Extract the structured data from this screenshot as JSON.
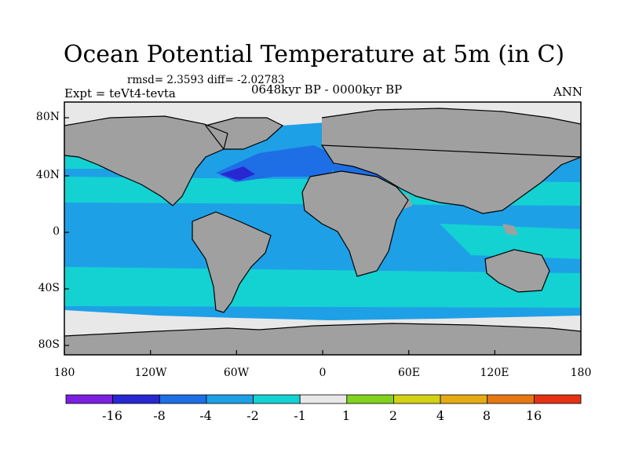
{
  "title": "Ocean Potential Temperature at 5m (in C)",
  "stats": "rmsd= 2.3593 diff= -2.02783",
  "experiment": "Expt = teVt4-tevta",
  "period": "0648kyr BP - 0000kyr BP",
  "season": "ANN",
  "axes": {
    "x_ticks": [
      "180",
      "120W",
      "60W",
      "0",
      "60E",
      "120E",
      "180"
    ],
    "y_ticks": [
      "80N",
      "40N",
      "0",
      "40S",
      "80S"
    ]
  },
  "colorbar": {
    "labels": [
      "-16",
      "-8",
      "-4",
      "-2",
      "-1",
      "1",
      "2",
      "4",
      "8",
      "16"
    ],
    "colors": [
      "#7b1fe0",
      "#2828d2",
      "#1e6ee6",
      "#1ea0e6",
      "#14d2d2",
      "#e8e8e8",
      "#82d21e",
      "#d2d214",
      "#e6aa14",
      "#e67814",
      "#e63214"
    ]
  },
  "palette": {
    "land": "#a0a0a0",
    "ice": "#e8e8e8",
    "ocean_cyan": "#14d2d2",
    "ocean_blue": "#1ea0e6",
    "ocean_deep": "#1e6ee6",
    "ocean_darkest": "#2828d2"
  }
}
